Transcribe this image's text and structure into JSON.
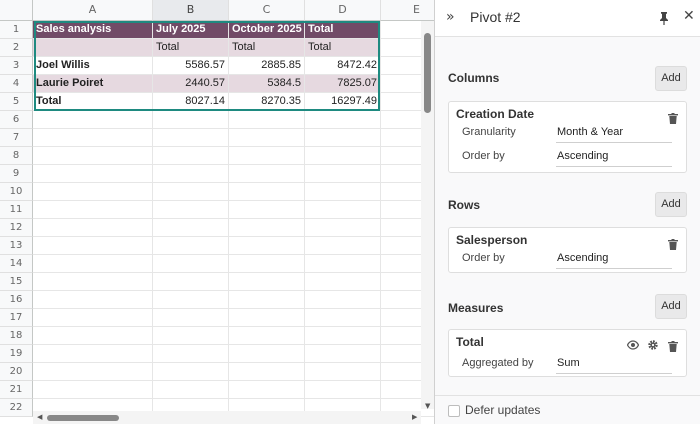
{
  "sheet": {
    "columns": [
      "A",
      "B",
      "C",
      "D",
      "E"
    ],
    "row_numbers": [
      "1",
      "2",
      "3",
      "4",
      "5",
      "6",
      "7",
      "8",
      "9",
      "10",
      "11",
      "12",
      "13",
      "14",
      "15",
      "16",
      "17",
      "18",
      "19",
      "20",
      "21",
      "22"
    ],
    "pivot": {
      "header_row": [
        "Sales analysis",
        "July 2025",
        "October 2025",
        "Total"
      ],
      "sub_header_row": [
        "",
        "Total",
        "Total",
        "Total"
      ],
      "data_rows": [
        [
          "Joel Willis",
          "5586.57",
          "2885.85",
          "8472.42"
        ],
        [
          "Laurie Poiret",
          "2440.57",
          "5384.5",
          "7825.07"
        ],
        [
          "Total",
          "8027.14",
          "8270.35",
          "16297.49"
        ]
      ]
    },
    "colors": {
      "header_bg": "#714b67",
      "sub_bg": "#e6d9e0",
      "selection": "#1e8a80"
    }
  },
  "panel": {
    "title": "Pivot #2",
    "columns_section": {
      "label": "Columns",
      "add_label": "Add",
      "dimension": {
        "name": "Creation Date",
        "options": [
          {
            "label": "Granularity",
            "value": "Month & Year"
          },
          {
            "label": "Order by",
            "value": "Ascending"
          }
        ]
      }
    },
    "rows_section": {
      "label": "Rows",
      "add_label": "Add",
      "dimension": {
        "name": "Salesperson",
        "options": [
          {
            "label": "Order by",
            "value": "Ascending"
          }
        ]
      }
    },
    "measures_section": {
      "label": "Measures",
      "add_label": "Add",
      "measure": {
        "name": "Total",
        "options": [
          {
            "label": "Aggregated by",
            "value": "Sum"
          }
        ]
      }
    },
    "defer_updates_label": "Defer updates",
    "defer_updates_checked": false
  }
}
